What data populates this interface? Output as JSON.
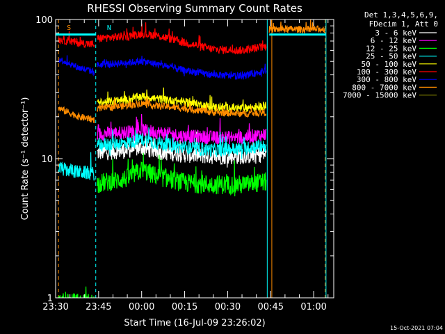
{
  "chart_data": {
    "type": "line",
    "title": "RHESSI Observing Summary Count Rates",
    "xlabel": "Start Time (16-Jul-09 23:26:02)",
    "ylabel": "Count Rate (s⁻¹ detector⁻¹)",
    "yscale": "log",
    "ylim": [
      1,
      100
    ],
    "xlim_minutes": [
      -30.0,
      67.0
    ],
    "x_ticks": [
      {
        "label": "23:30",
        "minutes": -30
      },
      {
        "label": "23:45",
        "minutes": -15
      },
      {
        "label": "00:00",
        "minutes": 0
      },
      {
        "label": "00:15",
        "minutes": 15
      },
      {
        "label": "00:30",
        "minutes": 30
      },
      {
        "label": "00:45",
        "minutes": 45
      },
      {
        "label": "01:00",
        "minutes": 60
      }
    ],
    "y_ticks": [
      {
        "label": "1",
        "value": 1
      },
      {
        "label": "10",
        "value": 10
      },
      {
        "label": "100",
        "value": 100
      }
    ],
    "legend_header": [
      "Det 1,3,4,5,6,9,",
      "FDecim 1, Att 0"
    ],
    "legend_position": "right",
    "grid": false,
    "markers": [
      {
        "label": "S",
        "minutes": -29.0,
        "color": "#ff8c00"
      },
      {
        "label": "N",
        "minutes": -15.0,
        "color": "#00ffff"
      }
    ],
    "vlines": [
      {
        "minutes": -30.0,
        "color": "#00ffff",
        "style": "solid"
      },
      {
        "minutes": -29.0,
        "color": "#ff8c00",
        "style": "dashed"
      },
      {
        "minutes": -16.0,
        "color": "#00ffff",
        "style": "dashed"
      },
      {
        "minutes": 43.8,
        "color": "#00ffff",
        "style": "solid"
      },
      {
        "minutes": 45.4,
        "color": "#ff8c00",
        "style": "solid"
      },
      {
        "minutes": 64.0,
        "color": "#ff8c00",
        "style": "dashed"
      },
      {
        "minutes": 64.3,
        "color": "#00ffff",
        "style": "solid"
      }
    ],
    "series": [
      {
        "name": "3 - 6 keV",
        "color": "#ffffff",
        "noise": 0.06,
        "segments": [
          [
            [
              -15.5,
              11.0
            ],
            [
              -5,
              11.5
            ],
            [
              0,
              12.0
            ],
            [
              5,
              11.3
            ],
            [
              15,
              10.7
            ],
            [
              25,
              10.4
            ],
            [
              35,
              10.4
            ],
            [
              43.5,
              10.8
            ]
          ]
        ]
      },
      {
        "name": "6 - 12 keV",
        "color": "#ff00ff",
        "noise": 0.05,
        "segments": [
          [
            [
              -15.5,
              15.0
            ],
            [
              -5,
              15.5
            ],
            [
              0,
              16.0
            ],
            [
              5,
              15.5
            ],
            [
              15,
              14.5
            ],
            [
              25,
              14.2
            ],
            [
              35,
              14.2
            ],
            [
              43.5,
              15.0
            ]
          ]
        ]
      },
      {
        "name": "12 - 25 keV",
        "color": "#00ff00",
        "noise": 0.07,
        "segments": [
          [
            [
              -29.5,
              0.92
            ],
            [
              -16.5,
              0.92
            ]
          ],
          [
            [
              -15.5,
              6.6
            ],
            [
              -5,
              7.2
            ],
            [
              0,
              8.3
            ],
            [
              5,
              7.5
            ],
            [
              15,
              6.7
            ],
            [
              25,
              6.5
            ],
            [
              35,
              6.5
            ],
            [
              43.5,
              6.8
            ]
          ]
        ]
      },
      {
        "name": "25 - 50 keV",
        "color": "#00ffff",
        "noise": 0.05,
        "segments": [
          [
            [
              -29.0,
              8.5
            ],
            [
              -22,
              8.0
            ],
            [
              -16.5,
              7.8
            ]
          ],
          [
            [
              -15.5,
              12.5
            ],
            [
              -5,
              13.0
            ],
            [
              0,
              13.8
            ],
            [
              5,
              13.0
            ],
            [
              15,
              12.0
            ],
            [
              25,
              11.5
            ],
            [
              35,
              11.8
            ],
            [
              43.5,
              12.5
            ]
          ]
        ]
      },
      {
        "name": "50 - 100 keV",
        "color": "#ffff00",
        "noise": 0.03,
        "segments": [
          [
            [
              -15.5,
              25.0
            ],
            [
              -5,
              26.5
            ],
            [
              0,
              28.0
            ],
            [
              5,
              27.0
            ],
            [
              15,
              25.5
            ],
            [
              25,
              23.5
            ],
            [
              35,
              23.0
            ],
            [
              43.5,
              24.0
            ]
          ]
        ]
      },
      {
        "name": "100 - 300 keV",
        "color": "#ff0000",
        "noise": 0.03,
        "segments": [
          [
            [
              -29.0,
              72.0
            ],
            [
              -22,
              68.0
            ],
            [
              -16.5,
              66.0
            ]
          ],
          [
            [
              -15.5,
              73.0
            ],
            [
              -5,
              76.0
            ],
            [
              0,
              79.0
            ],
            [
              5,
              77.0
            ],
            [
              15,
              68.0
            ],
            [
              25,
              61.0
            ],
            [
              35,
              60.0
            ],
            [
              43.5,
              64.0
            ]
          ]
        ]
      },
      {
        "name": "300 - 800 keV",
        "color": "#0000ff",
        "noise": 0.025,
        "segments": [
          [
            [
              -29.0,
              52.0
            ],
            [
              -22,
              45.0
            ],
            [
              -16.5,
              42.0
            ]
          ],
          [
            [
              -15.5,
              47.0
            ],
            [
              -5,
              49.0
            ],
            [
              0,
              50.0
            ],
            [
              5,
              48.0
            ],
            [
              15,
              43.0
            ],
            [
              25,
              40.0
            ],
            [
              35,
              39.0
            ],
            [
              43.5,
              43.0
            ]
          ]
        ]
      },
      {
        "name": "800 - 7000 keV",
        "color": "#ff8c00",
        "noise": 0.025,
        "segments": [
          [
            [
              -29.0,
              23.0
            ],
            [
              -22,
              20.0
            ],
            [
              -16.5,
              19.0
            ]
          ],
          [
            [
              -15.5,
              23.0
            ],
            [
              -5,
              24.0
            ],
            [
              0,
              25.0
            ],
            [
              5,
              24.0
            ],
            [
              15,
              23.0
            ],
            [
              25,
              21.5
            ],
            [
              35,
              21.0
            ],
            [
              43.5,
              21.5
            ]
          ],
          [
            [
              44.5,
              85.0
            ],
            [
              64.0,
              85.0
            ]
          ]
        ]
      },
      {
        "name": "7000 - 15000 keV",
        "color": "#808000",
        "noise": 0.0,
        "segments": []
      }
    ]
  },
  "footer_timestamp": "15-Oct-2021 07:04"
}
